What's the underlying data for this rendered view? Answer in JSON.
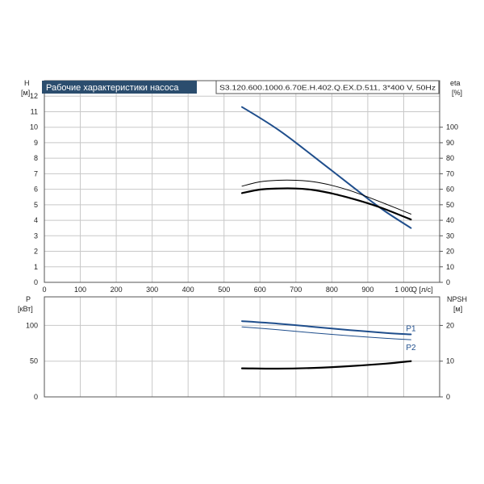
{
  "header": {
    "title": "Рабочие характеристики насоса",
    "model": "S3.120.600.1000.6.70E.H.402.Q.EX.D.511, 3*400 V, 50Hz"
  },
  "colors": {
    "title_bg": "#2b4d6e",
    "title_fg": "#ffffff",
    "blue": "#1f4e8c",
    "black": "#000000",
    "grid": "#c8c8c8"
  },
  "chart_data": [
    {
      "type": "line",
      "panel": "head-efficiency",
      "xlabel": "Q [л/с]",
      "xlim": [
        0,
        1100
      ],
      "x_ticks": [
        0,
        100,
        200,
        300,
        400,
        500,
        600,
        700,
        800,
        900,
        1000
      ],
      "x_tick_labels": [
        "0",
        "100",
        "200",
        "300",
        "400",
        "500",
        "600",
        "700",
        "800",
        "900",
        "1 000"
      ],
      "ylabel_left": "H",
      "ylabel_left_unit": "[м]",
      "ylim_left": [
        0,
        13
      ],
      "y_ticks_left": [
        0,
        1,
        2,
        3,
        4,
        5,
        6,
        7,
        8,
        9,
        10,
        11,
        12
      ],
      "ylabel_right": "eta",
      "ylabel_right_unit": "[%]",
      "ylim_right": [
        0,
        130
      ],
      "y_ticks_right": [
        0,
        10,
        20,
        30,
        40,
        50,
        60,
        70,
        80,
        90,
        100
      ],
      "grid": true,
      "series": [
        {
          "axis": "left",
          "color": "#1f4e8c",
          "width": 2,
          "x": [
            550,
            600,
            650,
            700,
            750,
            800,
            850,
            900,
            950,
            1020
          ],
          "y": [
            11.3,
            10.6,
            9.85,
            9.0,
            8.1,
            7.2,
            6.3,
            5.4,
            4.55,
            3.5
          ]
        },
        {
          "axis": "right",
          "color": "#000000",
          "width": 1,
          "x": [
            550,
            600,
            650,
            700,
            750,
            800,
            850,
            900,
            950,
            1020
          ],
          "y": [
            62,
            64.8,
            65.8,
            65.8,
            64.8,
            62.5,
            59.2,
            55,
            50.5,
            44
          ]
        },
        {
          "axis": "right",
          "color": "#000000",
          "width": 2.2,
          "x": [
            550,
            600,
            650,
            700,
            750,
            800,
            850,
            900,
            950,
            1020
          ],
          "y": [
            57.5,
            59.8,
            60.5,
            60.5,
            59.5,
            57.3,
            54.4,
            51,
            47,
            40.5
          ]
        }
      ]
    },
    {
      "type": "line",
      "panel": "power-npsh",
      "xlim": [
        0,
        1100
      ],
      "ylabel_left": "P",
      "ylabel_left_unit": "[кВт]",
      "ylim_left": [
        0,
        140
      ],
      "y_ticks_left": [
        0,
        50,
        100
      ],
      "ylabel_right": "NPSH",
      "ylabel_right_unit": "[м]",
      "ylim_right": [
        0,
        28
      ],
      "y_ticks_right": [
        0,
        10,
        20
      ],
      "grid": true,
      "series": [
        {
          "name": "P1",
          "axis": "left",
          "color": "#1f4e8c",
          "width": 2,
          "x": [
            550,
            650,
            750,
            850,
            950,
            1020
          ],
          "y": [
            106,
            102.5,
            98,
            93.5,
            89.5,
            87.5
          ]
        },
        {
          "name": "P2",
          "axis": "left",
          "color": "#1f4e8c",
          "width": 1,
          "x": [
            550,
            650,
            750,
            850,
            950,
            1020
          ],
          "y": [
            98,
            94,
            89.5,
            85.5,
            82,
            80
          ]
        },
        {
          "axis": "right",
          "color": "#000000",
          "width": 2.2,
          "x": [
            550,
            650,
            750,
            850,
            950,
            1020
          ],
          "y": [
            8.0,
            7.9,
            8.1,
            8.6,
            9.3,
            10.0
          ]
        }
      ]
    }
  ]
}
